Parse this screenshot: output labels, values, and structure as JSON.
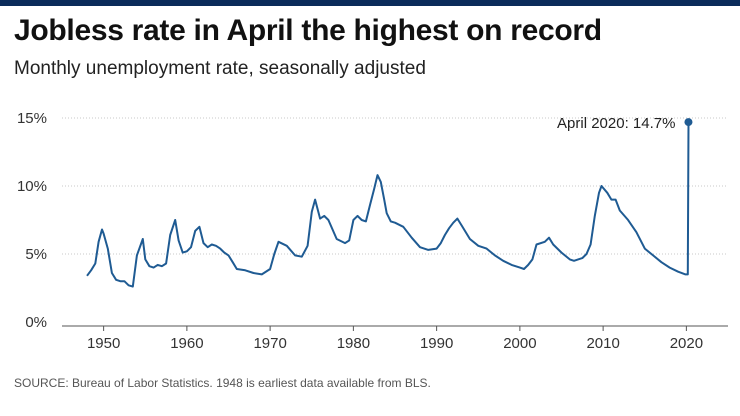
{
  "header": {
    "title": "Jobless rate in April the highest on record",
    "subtitle": "Monthly unemployment rate, seasonally adjusted"
  },
  "footer": {
    "source": "SOURCE: Bureau of Labor Statistics. 1948 is earliest data available from BLS."
  },
  "colors": {
    "line": "#1f5b93",
    "grid": "#c8c8c8",
    "axis": "#555555",
    "top_bar": "#0b2b5a"
  },
  "chart_data": {
    "type": "line",
    "title": "Jobless rate in April the highest on record",
    "subtitle": "Monthly unemployment rate, seasonally adjusted",
    "xlabel": "",
    "ylabel": "",
    "xlim": [
      1945,
      2025
    ],
    "ylim": [
      0,
      15
    ],
    "grid": true,
    "yticks": [
      {
        "value": 0,
        "label": "0%"
      },
      {
        "value": 5,
        "label": "5%"
      },
      {
        "value": 10,
        "label": "10%"
      },
      {
        "value": 15,
        "label": "15%"
      }
    ],
    "xticks": [
      {
        "value": 1950,
        "label": "1950"
      },
      {
        "value": 1960,
        "label": "1960"
      },
      {
        "value": 1970,
        "label": "1970"
      },
      {
        "value": 1980,
        "label": "1980"
      },
      {
        "value": 1990,
        "label": "1990"
      },
      {
        "value": 2000,
        "label": "2000"
      },
      {
        "value": 2010,
        "label": "2010"
      },
      {
        "value": 2020,
        "label": "2020"
      }
    ],
    "series": [
      {
        "name": "Unemployment rate",
        "x": [
          1948.0,
          1948.5,
          1949.0,
          1949.4,
          1949.8,
          1950.0,
          1950.5,
          1951.0,
          1951.5,
          1952.0,
          1952.5,
          1953.0,
          1953.5,
          1954.0,
          1954.7,
          1955.0,
          1955.5,
          1956.0,
          1956.5,
          1957.0,
          1957.5,
          1958.0,
          1958.6,
          1959.0,
          1959.5,
          1960.0,
          1960.5,
          1961.0,
          1961.5,
          1962.0,
          1962.5,
          1963.0,
          1963.5,
          1964.0,
          1964.5,
          1965.0,
          1965.5,
          1966.0,
          1967.0,
          1968.0,
          1969.0,
          1970.0,
          1970.5,
          1971.0,
          1972.0,
          1973.0,
          1973.8,
          1974.5,
          1975.0,
          1975.4,
          1976.0,
          1976.5,
          1977.0,
          1978.0,
          1979.0,
          1979.5,
          1980.0,
          1980.5,
          1981.0,
          1981.5,
          1982.0,
          1982.5,
          1982.9,
          1983.3,
          1983.7,
          1984.0,
          1984.5,
          1985.0,
          1986.0,
          1987.0,
          1988.0,
          1989.0,
          1990.0,
          1990.5,
          1991.0,
          1991.5,
          1992.0,
          1992.5,
          1993.0,
          1994.0,
          1995.0,
          1996.0,
          1997.0,
          1998.0,
          1999.0,
          2000.0,
          2000.5,
          2001.0,
          2001.5,
          2002.0,
          2003.0,
          2003.5,
          2004.0,
          2005.0,
          2006.0,
          2006.5,
          2007.0,
          2007.5,
          2008.0,
          2008.5,
          2009.0,
          2009.5,
          2009.8,
          2010.5,
          2011.0,
          2011.5,
          2012.0,
          2013.0,
          2014.0,
          2015.0,
          2016.0,
          2017.0,
          2018.0,
          2019.0,
          2019.9,
          2020.17,
          2020.25
        ],
        "values": [
          3.4,
          3.8,
          4.3,
          5.9,
          6.8,
          6.5,
          5.4,
          3.6,
          3.1,
          3.0,
          3.0,
          2.7,
          2.6,
          4.9,
          6.1,
          4.6,
          4.1,
          4.0,
          4.2,
          4.1,
          4.3,
          6.4,
          7.5,
          6.0,
          5.1,
          5.2,
          5.5,
          6.7,
          7.0,
          5.8,
          5.5,
          5.7,
          5.6,
          5.4,
          5.1,
          4.9,
          4.4,
          3.9,
          3.8,
          3.6,
          3.5,
          3.9,
          5.0,
          5.9,
          5.6,
          4.9,
          4.8,
          5.6,
          8.1,
          9.0,
          7.6,
          7.8,
          7.5,
          6.1,
          5.8,
          6.0,
          7.5,
          7.8,
          7.5,
          7.4,
          8.6,
          9.8,
          10.8,
          10.3,
          9.0,
          8.0,
          7.4,
          7.3,
          7.0,
          6.2,
          5.5,
          5.3,
          5.4,
          5.8,
          6.4,
          6.9,
          7.3,
          7.6,
          7.1,
          6.1,
          5.6,
          5.4,
          4.9,
          4.5,
          4.2,
          4.0,
          3.9,
          4.2,
          4.6,
          5.7,
          5.9,
          6.2,
          5.7,
          5.1,
          4.6,
          4.5,
          4.6,
          4.7,
          5.0,
          5.7,
          7.8,
          9.5,
          10.0,
          9.5,
          9.0,
          9.0,
          8.2,
          7.5,
          6.6,
          5.4,
          4.9,
          4.4,
          4.0,
          3.7,
          3.5,
          3.5,
          14.7
        ]
      }
    ],
    "annotation": {
      "text": "April 2020: 14.7%",
      "x": 2020.25,
      "y": 14.7
    }
  }
}
